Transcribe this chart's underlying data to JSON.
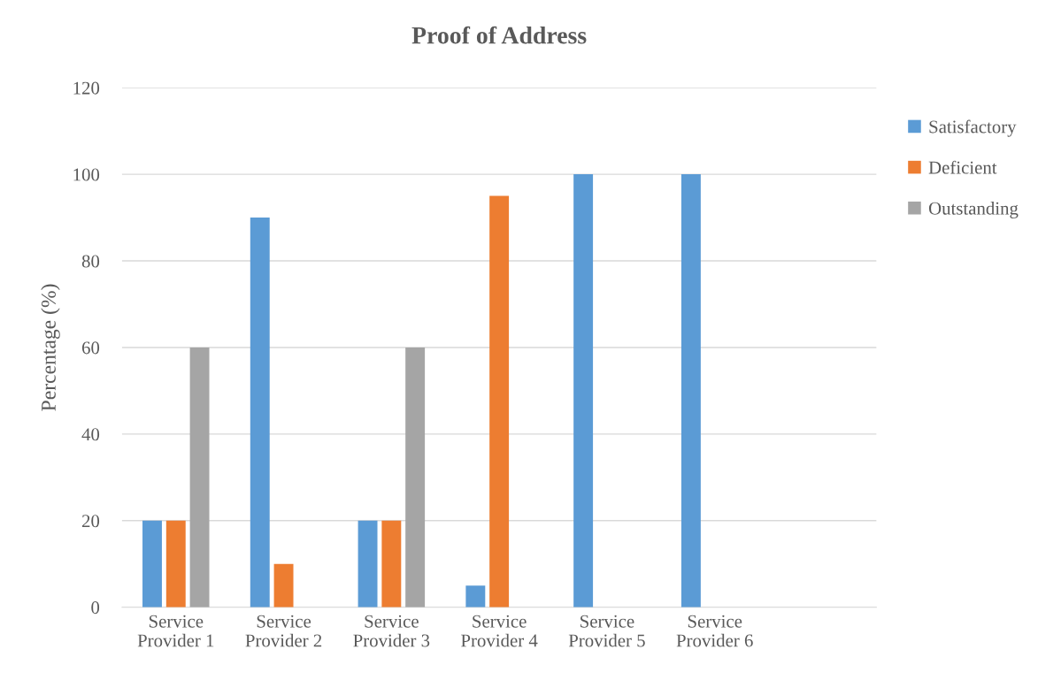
{
  "chart_data": {
    "type": "bar",
    "title": "Proof of Address",
    "ylabel": "Percentage (%)",
    "categories": [
      "Service\nProvider 1",
      "Service\nProvider 2",
      "Service\nProvider 3",
      "Service\nProvider 4",
      "Service\nProvider 5",
      "Service\nProvider 6",
      null
    ],
    "series": [
      {
        "name": "Satisfactory",
        "color": "#5b9bd5",
        "values": [
          20,
          90,
          20,
          5,
          100,
          100,
          null
        ]
      },
      {
        "name": "Deficient",
        "color": "#ed7d31",
        "values": [
          20,
          10,
          20,
          95,
          0,
          0,
          null
        ]
      },
      {
        "name": "Outstanding",
        "color": "#a5a5a5",
        "values": [
          60,
          0,
          60,
          0,
          0,
          0,
          null
        ]
      }
    ],
    "ylim": [
      0,
      120
    ],
    "yticks": [
      0,
      20,
      40,
      60,
      80,
      100,
      120
    ],
    "grid": "y",
    "legend": "right"
  }
}
